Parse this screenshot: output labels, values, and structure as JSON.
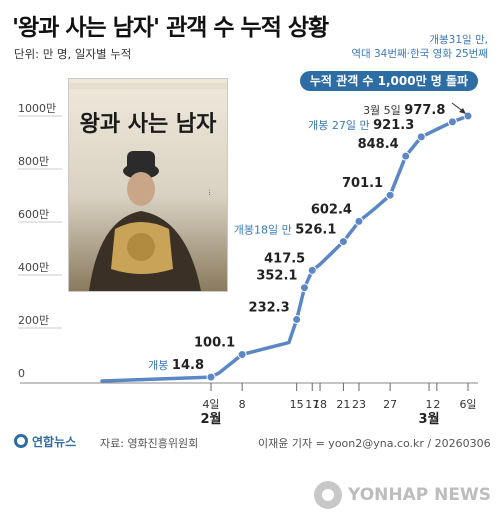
{
  "title": "'왕과 사는 남자' 관객 수 누적 상황",
  "unit_label": "단위: 만 명, 일자별 누적",
  "poster": {
    "title_text": "왕과 사는 남자",
    "icon": "movie-poster-image"
  },
  "milestone_note": {
    "line1": "개봉31일 만,",
    "line2": "역대 34번째·한국 영화 25번째"
  },
  "milestone_box": "누적 관객 수 1,000만 명 돌파",
  "footer": {
    "logo_text": "연합뉴스",
    "source": "자료: 영화진흥위원회",
    "credit": "이재윤 기자 = yoon2@yna.co.kr / 20260306",
    "watermark": "YONHAP NEWS"
  },
  "colors": {
    "line": "#5b87c5",
    "point": "#5b87c5",
    "accent": "#2e6da4",
    "note": "#3a7ab8"
  },
  "chart_data": {
    "type": "line",
    "title": "'왕과 사는 남자' 관객 수 누적 상황",
    "ylabel": "단위: 만 명, 일자별 누적",
    "ylim": [
      0,
      1000
    ],
    "y_ticks": [
      {
        "v": 0,
        "label": "0"
      },
      {
        "v": 200,
        "label": "200만"
      },
      {
        "v": 400,
        "label": "400만"
      },
      {
        "v": 600,
        "label": "600만"
      },
      {
        "v": 800,
        "label": "800만"
      },
      {
        "v": 1000,
        "label": "1000만"
      }
    ],
    "x_ticks": [
      {
        "day": 4,
        "label": "4일"
      },
      {
        "day": 8,
        "label": "8"
      },
      {
        "day": 15,
        "label": "15"
      },
      {
        "day": 17,
        "label": "17"
      },
      {
        "day": 18,
        "label": "18"
      },
      {
        "day": 21,
        "label": "21"
      },
      {
        "day": 23,
        "label": "23"
      },
      {
        "day": 27,
        "label": "27"
      },
      {
        "day": 32,
        "label": "1"
      },
      {
        "day": 33,
        "label": "2"
      },
      {
        "day": 37,
        "label": "6일"
      }
    ],
    "x_month_labels": [
      {
        "day": 4,
        "label": "2월"
      },
      {
        "day": 32,
        "label": "3월"
      }
    ],
    "line_points": [
      {
        "day": -10,
        "value": 0
      },
      {
        "day": 4,
        "value": 14.8
      },
      {
        "day": 5,
        "value": 30
      },
      {
        "day": 8,
        "value": 100.1
      },
      {
        "day": 14,
        "value": 145
      },
      {
        "day": 15,
        "value": 232.3
      },
      {
        "day": 16,
        "value": 352.1
      },
      {
        "day": 17,
        "value": 417.5
      },
      {
        "day": 18,
        "value": 440
      },
      {
        "day": 21,
        "value": 526.1
      },
      {
        "day": 23,
        "value": 602.4
      },
      {
        "day": 25,
        "value": 650
      },
      {
        "day": 27,
        "value": 701.1
      },
      {
        "day": 29,
        "value": 848.4
      },
      {
        "day": 31,
        "value": 921.3
      },
      {
        "day": 33,
        "value": 950
      },
      {
        "day": 35,
        "value": 977.8
      },
      {
        "day": 37,
        "value": 1000
      }
    ],
    "labeled_points": [
      {
        "day": 4,
        "value": 14.8,
        "label": "14.8",
        "note": "개봉"
      },
      {
        "day": 8,
        "value": 100.1,
        "label": "100.1",
        "note": ""
      },
      {
        "day": 15,
        "value": 232.3,
        "label": "232.3",
        "note": ""
      },
      {
        "day": 16,
        "value": 352.1,
        "label": "352.1",
        "note": ""
      },
      {
        "day": 17,
        "value": 417.5,
        "label": "417.5",
        "note": ""
      },
      {
        "day": 21,
        "value": 526.1,
        "label": "526.1",
        "note": "개봉18일 만"
      },
      {
        "day": 23,
        "value": 602.4,
        "label": "602.4",
        "note": ""
      },
      {
        "day": 27,
        "value": 701.1,
        "label": "701.1",
        "note": ""
      },
      {
        "day": 29,
        "value": 848.4,
        "label": "848.4",
        "note": ""
      },
      {
        "day": 31,
        "value": 921.3,
        "label": "921.3",
        "note": "개봉 27일 만"
      },
      {
        "day": 35,
        "value": 977.8,
        "label": "977.8",
        "note": "3월 5일"
      },
      {
        "day": 37,
        "value": 1000,
        "label": "",
        "note": ""
      }
    ],
    "grid": false,
    "legend": "none"
  }
}
